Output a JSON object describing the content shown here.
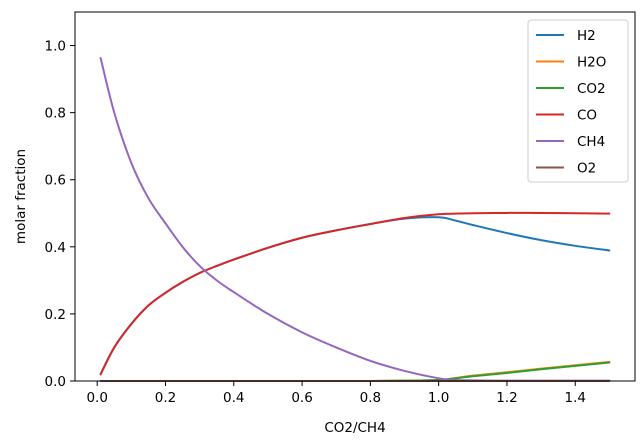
{
  "chart_data": {
    "type": "line",
    "title": "",
    "xlabel": "CO2/CH4",
    "ylabel": "molar fraction",
    "xlim": [
      -0.065,
      1.575
    ],
    "ylim": [
      0.0,
      1.1
    ],
    "xticks": [
      0.0,
      0.2,
      0.4,
      0.6,
      0.8,
      1.0,
      1.2,
      1.4
    ],
    "xtick_labels": [
      "0.0",
      "0.2",
      "0.4",
      "0.6",
      "0.8",
      "1.0",
      "1.2",
      "1.4"
    ],
    "yticks": [
      0.0,
      0.2,
      0.4,
      0.6,
      0.8,
      1.0
    ],
    "ytick_labels": [
      "0.0",
      "0.2",
      "0.4",
      "0.6",
      "0.8",
      "1.0"
    ],
    "grid": false,
    "legend_position": "top-right",
    "x": [
      0.01,
      0.05,
      0.1,
      0.15,
      0.2,
      0.25,
      0.3,
      0.35,
      0.4,
      0.5,
      0.6,
      0.7,
      0.8,
      0.9,
      1.0,
      1.05,
      1.1,
      1.2,
      1.3,
      1.4,
      1.5
    ],
    "series": [
      {
        "name": "H2",
        "color": "#1f77b4",
        "values": [
          0.02,
          0.1,
          0.17,
          0.225,
          0.263,
          0.295,
          0.322,
          0.343,
          0.362,
          0.397,
          0.427,
          0.449,
          0.468,
          0.484,
          0.488,
          0.478,
          0.465,
          0.441,
          0.42,
          0.403,
          0.389
        ]
      },
      {
        "name": "H2O",
        "color": "#ff7f0e",
        "values": [
          0.0,
          0.0,
          0.0,
          0.0,
          0.0,
          0.0,
          0.0,
          0.0,
          0.0,
          0.0,
          0.0,
          0.0,
          0.0,
          0.001,
          0.003,
          0.009,
          0.016,
          0.026,
          0.037,
          0.047,
          0.057
        ]
      },
      {
        "name": "CO2",
        "color": "#2ca02c",
        "values": [
          0.0,
          0.0,
          0.0,
          0.0,
          0.0,
          0.0,
          0.0,
          0.0,
          0.0,
          0.0,
          0.0,
          0.0,
          0.0,
          0.001,
          0.003,
          0.008,
          0.014,
          0.024,
          0.035,
          0.045,
          0.055
        ]
      },
      {
        "name": "CO",
        "color": "#d62728",
        "values": [
          0.02,
          0.1,
          0.17,
          0.225,
          0.263,
          0.295,
          0.322,
          0.343,
          0.362,
          0.397,
          0.427,
          0.449,
          0.468,
          0.486,
          0.497,
          0.499,
          0.5,
          0.501,
          0.501,
          0.5,
          0.499
        ]
      },
      {
        "name": "CH4",
        "color": "#9467bd",
        "values": [
          0.963,
          0.8,
          0.65,
          0.545,
          0.47,
          0.4,
          0.343,
          0.3,
          0.265,
          0.2,
          0.145,
          0.1,
          0.06,
          0.03,
          0.008,
          0.003,
          0.002,
          0.001,
          0.001,
          0.001,
          0.001
        ]
      },
      {
        "name": "O2",
        "color": "#8c564b",
        "values": [
          0.0,
          0.0,
          0.0,
          0.0,
          0.0,
          0.0,
          0.0,
          0.0,
          0.0,
          0.0,
          0.0,
          0.0,
          0.0,
          0.0,
          0.0,
          0.0,
          0.0,
          0.0,
          0.0,
          0.0,
          0.0
        ]
      }
    ]
  }
}
